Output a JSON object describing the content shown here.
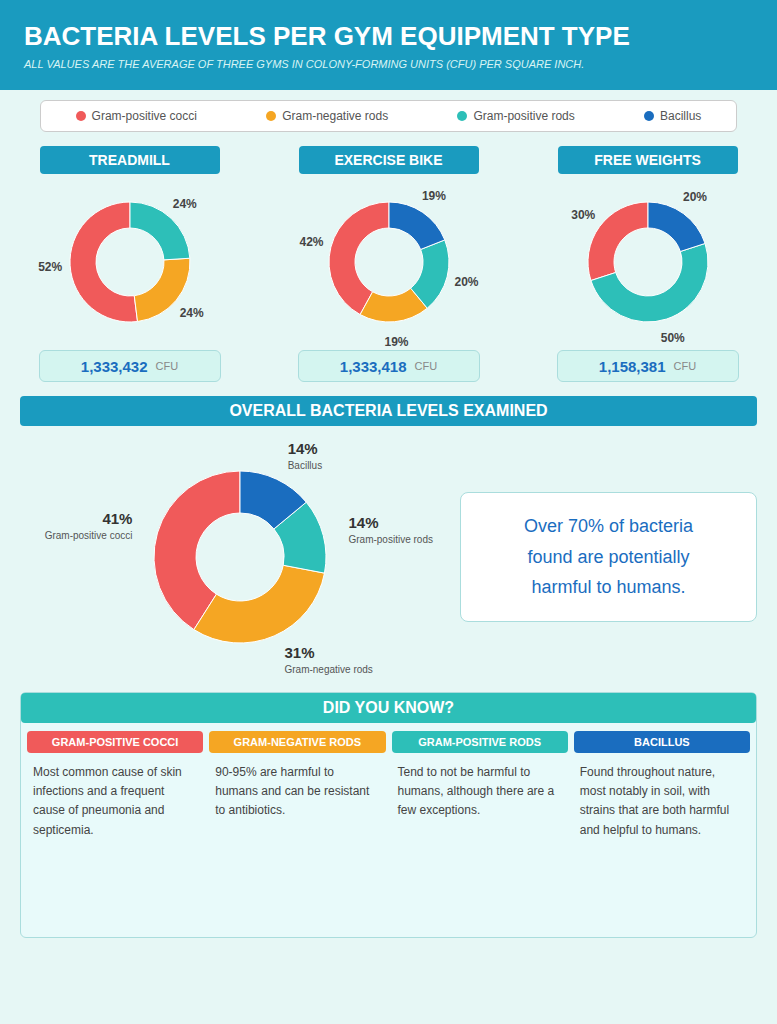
{
  "title": "BACTERIA LEVELS PER GYM EQUIPMENT TYPE",
  "subtitle": "ALL VALUES ARE THE AVERAGE OF THREE GYMS IN COLONY-FORMING UNITS (CFU) PER SQUARE INCH.",
  "legend": "top",
  "chart_data": [
    {
      "type": "pie",
      "title": "TREADMILL",
      "categories": [
        "Gram-positive cocci",
        "Gram-negative rods",
        "Gram-positive rods",
        "Bacillus"
      ],
      "values": [
        52,
        24,
        24,
        0
      ],
      "colors": [
        "#f05a5a",
        "#f5a623",
        "#2dbfb8",
        "#1a6dbf"
      ],
      "data_labels": true,
      "value_labels": [
        "52%",
        "24%",
        "24%",
        null
      ],
      "annotations": [
        "1,333,432",
        "CFU"
      ]
    },
    {
      "type": "pie",
      "title": "EXERCISE BIKE",
      "categories": [
        "Gram-positive cocci",
        "Gram-negative rods",
        "Gram-positive rods",
        "Bacillus"
      ],
      "values": [
        42,
        19,
        20,
        19
      ],
      "colors": [
        "#f05a5a",
        "#f5a623",
        "#2dbfb8",
        "#1a6dbf"
      ],
      "data_labels": true,
      "value_labels": [
        "42%",
        "19%",
        "20%",
        "19%"
      ],
      "annotations": [
        "1,333,418",
        "CFU"
      ]
    },
    {
      "type": "pie",
      "title": "FREE WEIGHTS",
      "categories": [
        "Gram-positive cocci",
        "Gram-negative rods",
        "Gram-positive rods",
        "Bacillus"
      ],
      "values": [
        30,
        0,
        50,
        20
      ],
      "colors": [
        "#f05a5a",
        "#f5a623",
        "#2dbfb8",
        "#1a6dbf"
      ],
      "data_labels": true,
      "value_labels": [
        "30%",
        null,
        "50%",
        "20%"
      ],
      "annotations": [
        "1,158,381",
        "CFU"
      ]
    },
    {
      "type": "pie",
      "title": "OVERALL BACTERIA LEVELS EXAMINED",
      "categories": [
        "Gram-positive cocci",
        "Gram-negative rods",
        "Gram-positive rods",
        "Bacillus"
      ],
      "values": [
        41,
        31,
        14,
        14
      ],
      "colors": [
        "#f05a5a",
        "#f5a623",
        "#2dbfb8",
        "#1a6dbf"
      ],
      "data_labels": true,
      "value_labels": [
        "41%",
        "31%",
        "14%",
        "14%"
      ]
    }
  ],
  "annotations": [
    {
      "text": "Over 70% of bacteria\nfound are potentially\nharmful to humans."
    },
    {
      "title": "DID YOU KNOW?",
      "sections": [
        {
          "title": "GRAM-POSITIVE COCCI",
          "color": "#f05a5a",
          "text": "Most common cause of skin infections and a frequent cause of pneumonia and septicemia."
        },
        {
          "title": "GRAM-NEGATIVE RODS",
          "color": "#f5a623",
          "text": "90-95% are harmful to humans and can be resistant to antibiotics."
        },
        {
          "title": "GRAM-POSITIVE RODS",
          "color": "#2dbfb8",
          "text": "Tend to not be harmful to humans, although there are a few exceptions."
        },
        {
          "title": "BACILLUS",
          "color": "#1a6dbf",
          "text": "Found throughout nature, most notably in soil, with strains that are both harmful and helpful to humans."
        }
      ]
    }
  ]
}
